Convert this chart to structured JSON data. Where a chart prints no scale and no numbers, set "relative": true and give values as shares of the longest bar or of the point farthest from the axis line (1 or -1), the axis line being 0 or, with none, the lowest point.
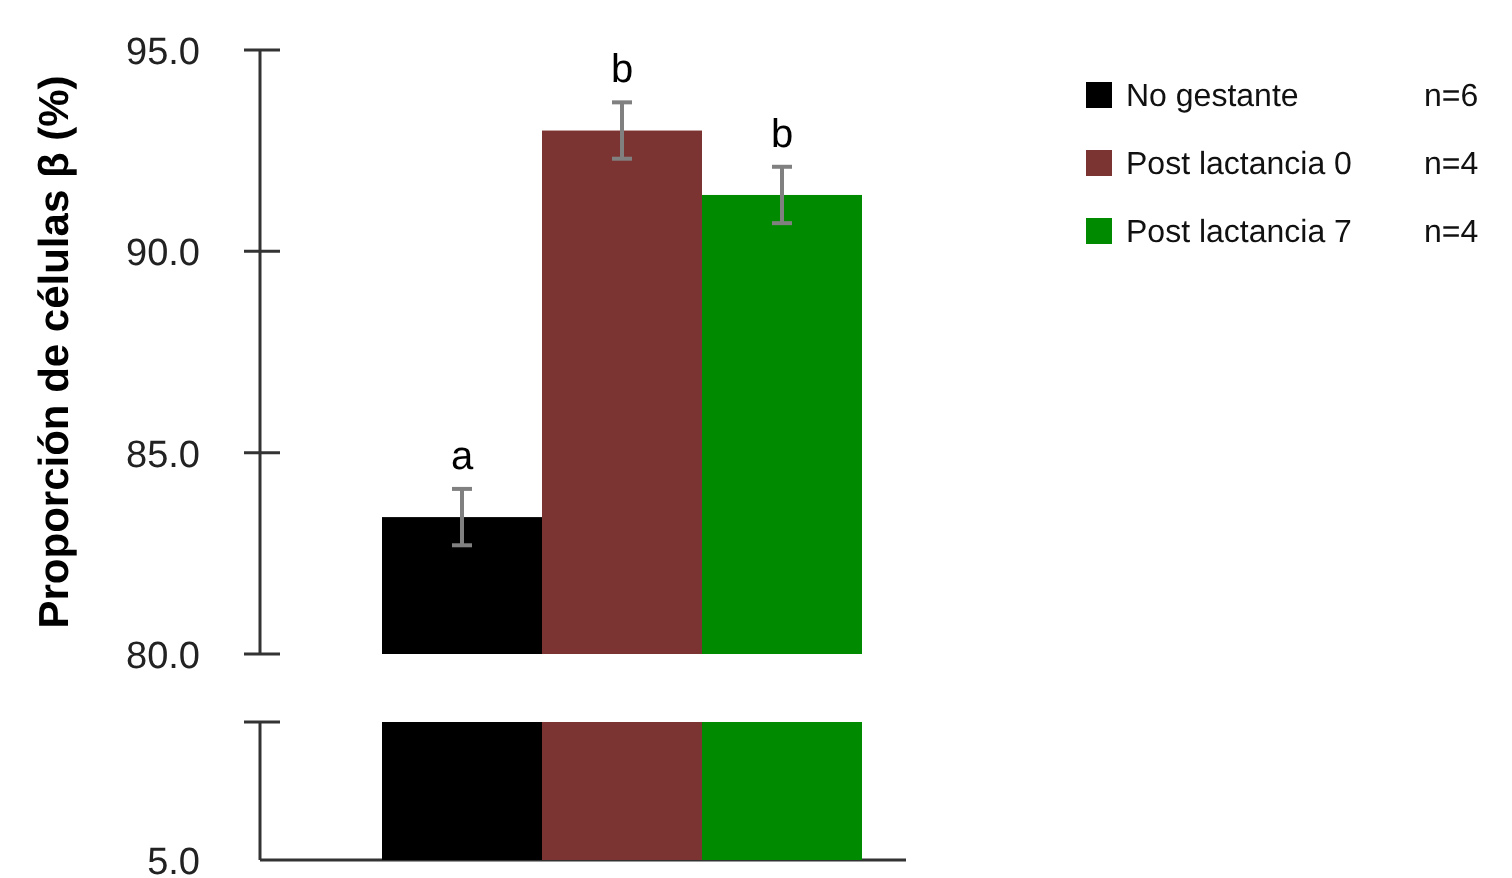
{
  "chart_data": [
    {
      "type": "bar",
      "ylabel": "Proporción de células β  (%)",
      "categories": [
        null
      ],
      "ylim": [
        80,
        95
      ],
      "yticks": [
        {
          "value": 80,
          "label": "80.0"
        },
        {
          "value": 85,
          "label": "85.0"
        },
        {
          "value": 90,
          "label": "90.0"
        },
        {
          "value": 95,
          "label": "95.0"
        }
      ],
      "tick_labels": "y",
      "legend": "right",
      "series": [
        {
          "name": "No gestante",
          "color": "#000000",
          "values": [
            83.4
          ],
          "errors": [
            0.7
          ],
          "value_labels": [
            "a"
          ]
        },
        {
          "name": "Post lactancia 0",
          "color": "#7b3431",
          "values": [
            93.0
          ],
          "errors": [
            0.7
          ],
          "value_labels": [
            "b"
          ]
        },
        {
          "name": "Post lactancia 7",
          "color": "#008a00",
          "values": [
            91.4
          ],
          "errors": [
            0.7
          ],
          "value_labels": [
            "b"
          ]
        }
      ],
      "annotations": [
        "n=6",
        "n=4",
        "n=4"
      ]
    },
    {
      "type": "bar",
      "categories": [
        null
      ],
      "relative": true,
      "series": [
        {
          "color": "#000000",
          "values": [
            1
          ]
        },
        {
          "color": "#7b3431",
          "values": [
            1
          ]
        },
        {
          "color": "#008a00",
          "values": [
            1
          ]
        }
      ],
      "annotations": [
        "5.0"
      ]
    }
  ]
}
